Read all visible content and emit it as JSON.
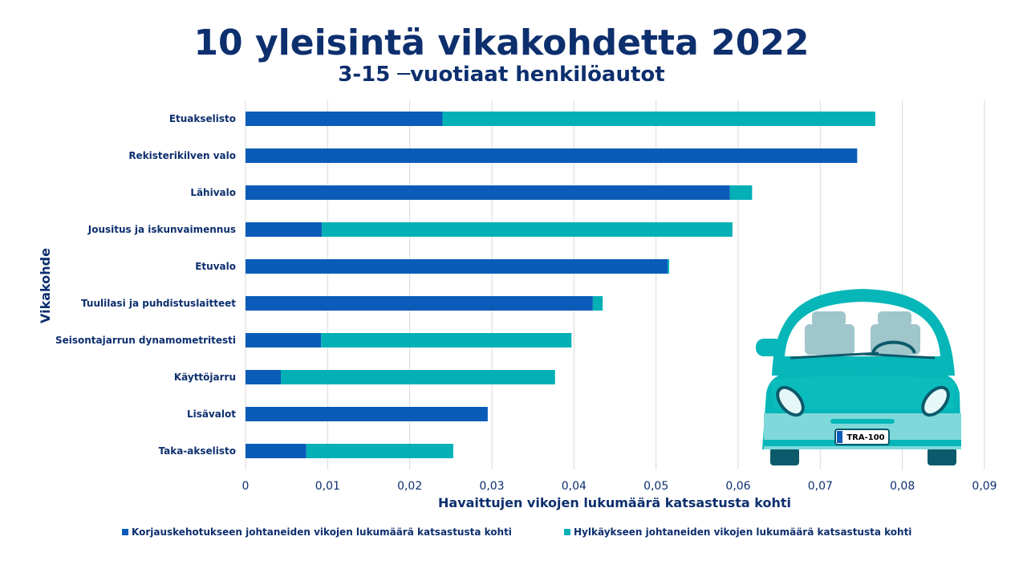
{
  "title": "10 yleisintä vikakohdetta 2022",
  "subtitle": "3-15 ─vuotiaat henkilöautot",
  "colors": {
    "series1": "#0a5cb8",
    "series2": "#03b0b5",
    "text": "#0d2f6e",
    "grid": "#d9d9d9"
  },
  "car": {
    "plate": "TRA-100"
  },
  "chart_data": {
    "type": "bar",
    "orientation": "horizontal",
    "stacked": true,
    "categories": [
      "Etuakselisto",
      "Rekisterikilven valo",
      "Lähivalo",
      "Jousitus ja iskunvaimennus",
      "Etuvalo",
      "Tuulilasi ja puhdistuslaitteet",
      "Seisontajarrun dynamometritesti",
      "Käyttöjarru",
      "Lisävalot",
      "Taka-akselisto"
    ],
    "series": [
      {
        "name": "Korjauskehotukseen johtaneiden vikojen lukumäärä katsastusta kohti",
        "values": [
          0.024,
          0.0745,
          0.059,
          0.0093,
          0.0514,
          0.0423,
          0.0092,
          0.0043,
          0.0295,
          0.0074
        ]
      },
      {
        "name": "Hylkäykseen johtaneiden vikojen lukumäärä katsastusta kohti",
        "values": [
          0.0527,
          0.0,
          0.0027,
          0.05,
          0.0002,
          0.0012,
          0.0305,
          0.0334,
          0.0,
          0.0179
        ]
      }
    ],
    "xlabel": "Havaittujen vikojen lukumäärä katsastusta kohti",
    "ylabel": "Vikakohde",
    "xlim": [
      0,
      0.09
    ],
    "xticks": [
      "0",
      "0,01",
      "0,02",
      "0,03",
      "0,04",
      "0,05",
      "0,06",
      "0,07",
      "0,08",
      "0,09"
    ],
    "grid": "vertical",
    "legend": "bottom"
  }
}
